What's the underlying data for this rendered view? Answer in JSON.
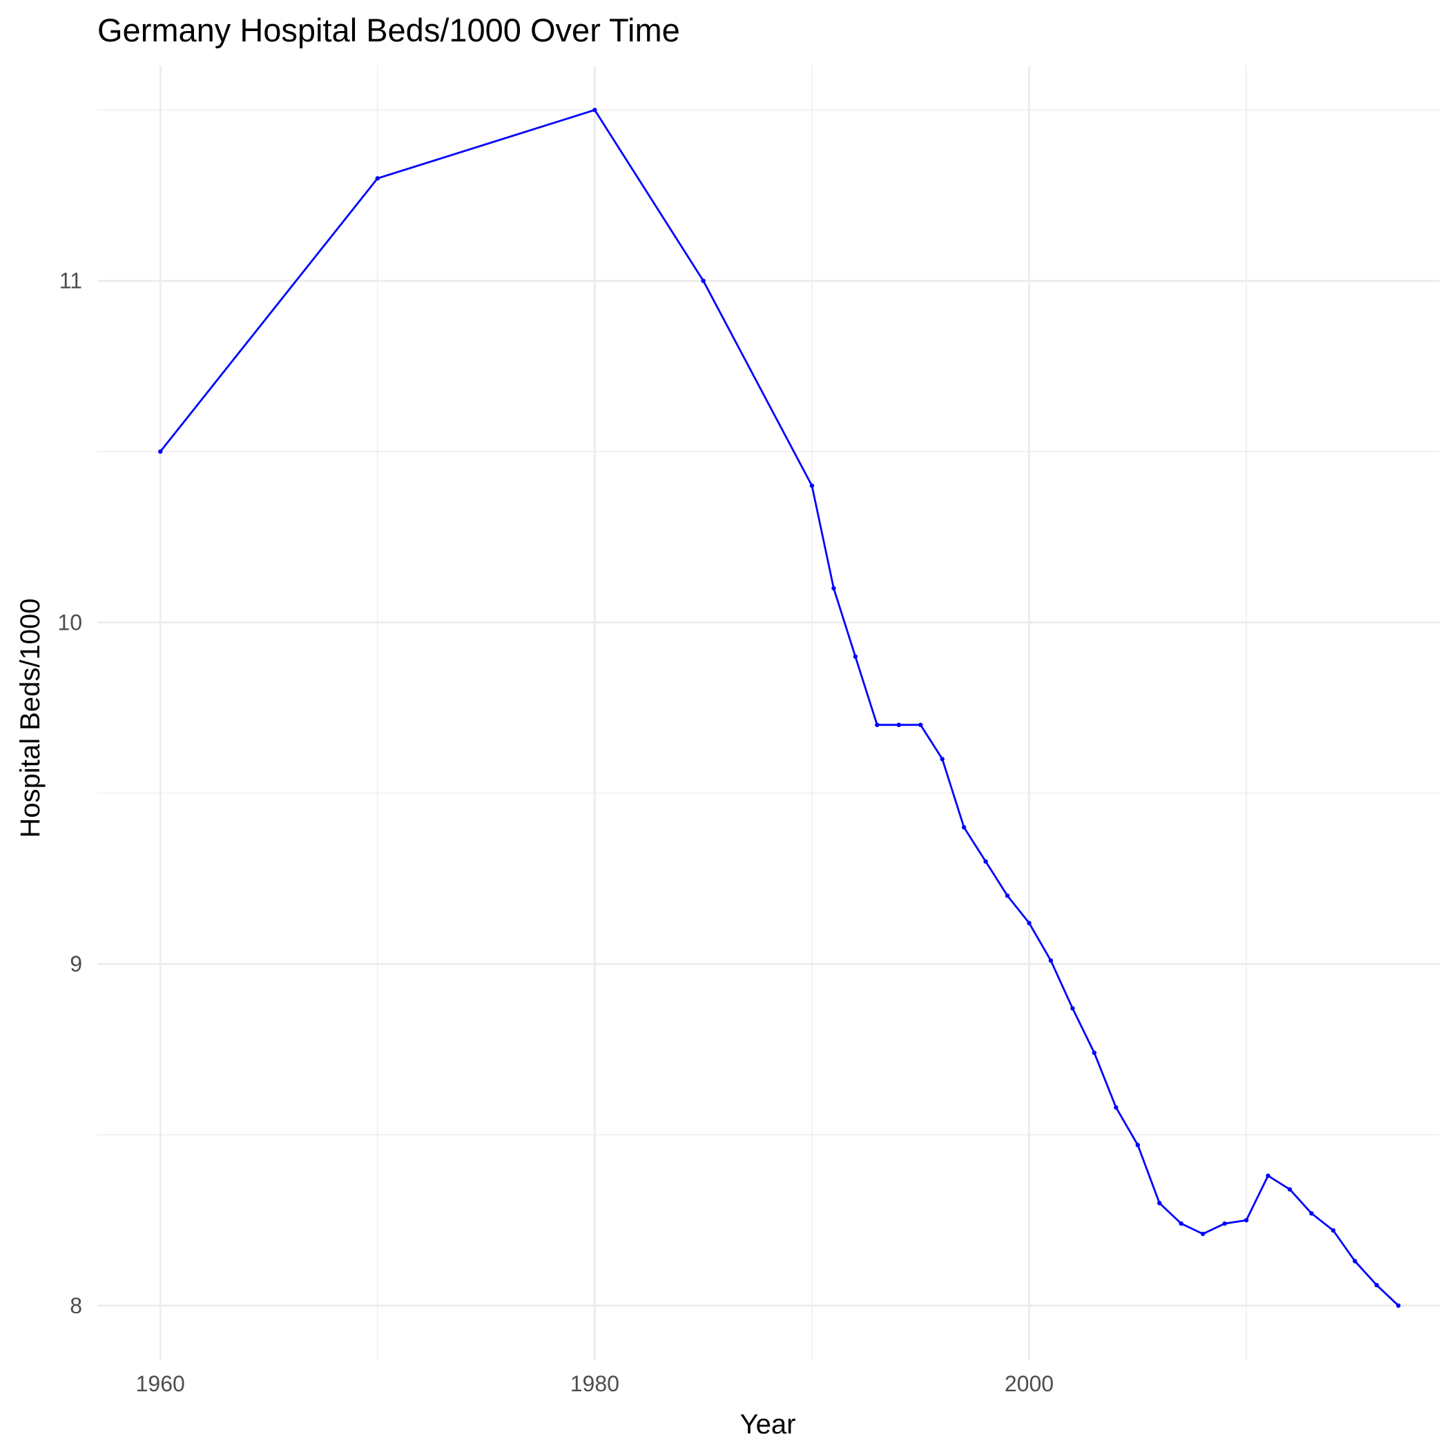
{
  "chart_data": {
    "type": "line",
    "title": "Germany Hospital Beds/1000 Over Time",
    "xlabel": "Year",
    "ylabel": "Hospital Beds/1000",
    "x_ticks": [
      1960,
      1980,
      2000
    ],
    "y_ticks": [
      8,
      9,
      10,
      11
    ],
    "xlim": [
      1957.1,
      2018.9
    ],
    "ylim": [
      7.84,
      11.63
    ],
    "grid": true,
    "legend": "none",
    "series": [
      {
        "color": "#0000ff",
        "x": [
          1960,
          1970,
          1980,
          1985,
          1990,
          1991,
          1992,
          1993,
          1994,
          1995,
          1996,
          1997,
          1998,
          1999,
          2000,
          2001,
          2002,
          2003,
          2004,
          2005,
          2006,
          2007,
          2008,
          2009,
          2010,
          2011,
          2012,
          2013,
          2014,
          2015,
          2016,
          2017
        ],
        "values": [
          10.5,
          11.3,
          11.5,
          11.0,
          10.4,
          10.1,
          9.9,
          9.7,
          9.7,
          9.7,
          9.6,
          9.4,
          9.3,
          9.2,
          9.12,
          9.01,
          8.87,
          8.74,
          8.58,
          8.47,
          8.3,
          8.24,
          8.21,
          8.24,
          8.25,
          8.38,
          8.34,
          8.27,
          8.22,
          8.13,
          8.06,
          8.0
        ]
      }
    ]
  }
}
